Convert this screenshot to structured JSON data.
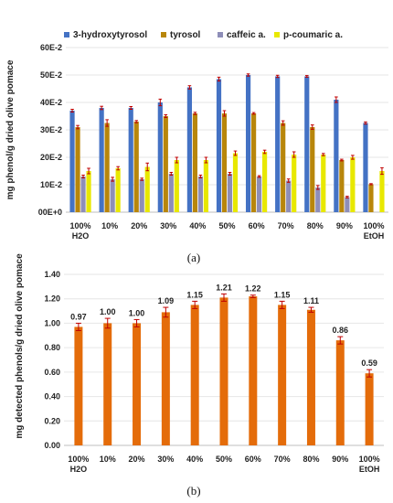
{
  "chart_data": [
    {
      "type": "bar",
      "panel_label": "(a)",
      "ylabel": "mg phenol/g dried olive pomace",
      "ylim": [
        0,
        0.06
      ],
      "ytick_labels": [
        "00E+0",
        "10E-2",
        "20E-2",
        "30E-2",
        "40E-2",
        "50E-2",
        "60E-2"
      ],
      "categories": [
        [
          "100%",
          "H2O"
        ],
        [
          "10%"
        ],
        [
          "20%"
        ],
        [
          "30%"
        ],
        [
          "40%"
        ],
        [
          "50%"
        ],
        [
          "60%"
        ],
        [
          "70%"
        ],
        [
          "80%"
        ],
        [
          "90%"
        ],
        [
          "100%",
          "EtOH"
        ]
      ],
      "legend_position": "top",
      "series": [
        {
          "name": "3-hydroxytyrosol",
          "color": "#4472C4",
          "values": [
            0.037,
            0.038,
            0.038,
            0.04,
            0.0455,
            0.0485,
            0.05,
            0.0495,
            0.0495,
            0.041,
            0.0325
          ],
          "errors": [
            0.0005,
            0.0006,
            0.0005,
            0.0012,
            0.0006,
            0.0007,
            0.0004,
            0.0004,
            0.0003,
            0.001,
            0.0004
          ]
        },
        {
          "name": "tyrosol",
          "color": "#B8860B",
          "values": [
            0.031,
            0.0325,
            0.033,
            0.035,
            0.036,
            0.036,
            0.036,
            0.0325,
            0.031,
            0.019,
            0.0102
          ],
          "errors": [
            0.0006,
            0.0012,
            0.0004,
            0.0005,
            0.0004,
            0.001,
            0.0003,
            0.0008,
            0.0008,
            0.0003,
            0.0002
          ]
        },
        {
          "name": "caffeic a.",
          "color": "#8E8EB8",
          "values": [
            0.013,
            0.012,
            0.012,
            0.014,
            0.013,
            0.014,
            0.013,
            0.0115,
            0.009,
            0.0055,
            0.0
          ],
          "errors": [
            0.0005,
            0.0007,
            0.0004,
            0.0005,
            0.0005,
            0.0005,
            0.0003,
            0.0006,
            0.0007,
            0.0003,
            0.0
          ]
        },
        {
          "name": "p-coumaric a.",
          "color": "#E8E800",
          "values": [
            0.015,
            0.016,
            0.0165,
            0.019,
            0.019,
            0.0215,
            0.022,
            0.021,
            0.021,
            0.02,
            0.015
          ],
          "errors": [
            0.001,
            0.0006,
            0.0014,
            0.001,
            0.001,
            0.0008,
            0.0006,
            0.001,
            0.0004,
            0.0007,
            0.0012
          ]
        }
      ],
      "grid": true
    },
    {
      "type": "bar",
      "panel_label": "(b)",
      "ylabel": "mg detected phenols/g dried olive pomace",
      "ylim": [
        0,
        1.4
      ],
      "ytick_labels": [
        "0.00",
        "0.20",
        "0.40",
        "0.60",
        "0.80",
        "1.00",
        "1.20",
        "1.40"
      ],
      "categories": [
        [
          "100%",
          "H2O"
        ],
        [
          "10%"
        ],
        [
          "20%"
        ],
        [
          "30%"
        ],
        [
          "40%"
        ],
        [
          "50%"
        ],
        [
          "60%"
        ],
        [
          "70%"
        ],
        [
          "80%"
        ],
        [
          "90%"
        ],
        [
          "100%",
          "EtOH"
        ]
      ],
      "values": [
        0.97,
        1.0,
        1.0,
        1.09,
        1.15,
        1.21,
        1.22,
        1.15,
        1.11,
        0.86,
        0.59
      ],
      "value_labels": [
        "0.97",
        "1.00",
        "1.00",
        "1.09",
        "1.15",
        "1.21",
        "1.22",
        "1.15",
        "1.11",
        "0.86",
        "0.59"
      ],
      "errors": [
        0.03,
        0.04,
        0.03,
        0.04,
        0.03,
        0.03,
        0.01,
        0.03,
        0.02,
        0.03,
        0.03
      ],
      "bar_color": "#E46C0A",
      "error_color": "#C00000",
      "grid": true
    }
  ]
}
